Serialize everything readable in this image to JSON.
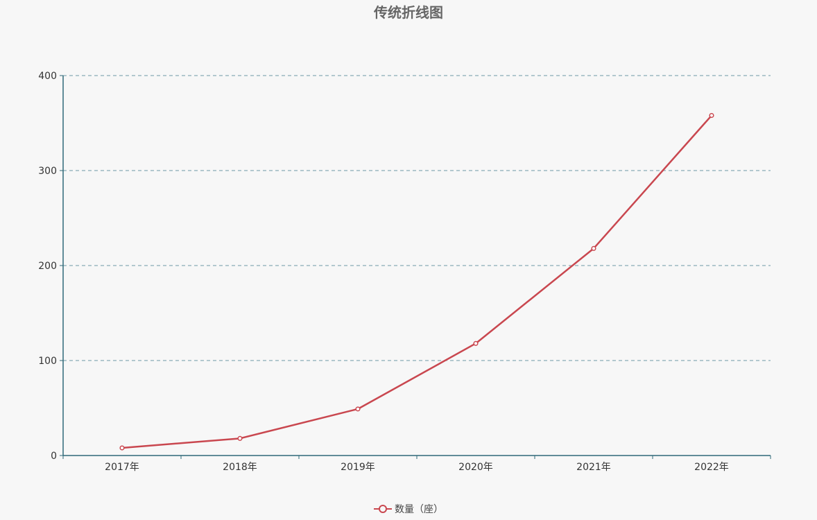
{
  "chart_data": {
    "type": "line",
    "title": "传统折线图",
    "xlabel": "",
    "ylabel": "",
    "categories": [
      "2017年",
      "2018年",
      "2019年",
      "2020年",
      "2021年",
      "2022年"
    ],
    "series": [
      {
        "name": "数量（座）",
        "values": [
          8,
          18,
          49,
          118,
          218,
          358
        ],
        "color": "#c9474f"
      }
    ],
    "ylim": [
      0,
      400
    ],
    "yticks": [
      0,
      100,
      200,
      300,
      400
    ],
    "grid": true,
    "legend_position": "bottom",
    "axis_color": "#2f6878",
    "grid_color": "#6e9aa6"
  }
}
